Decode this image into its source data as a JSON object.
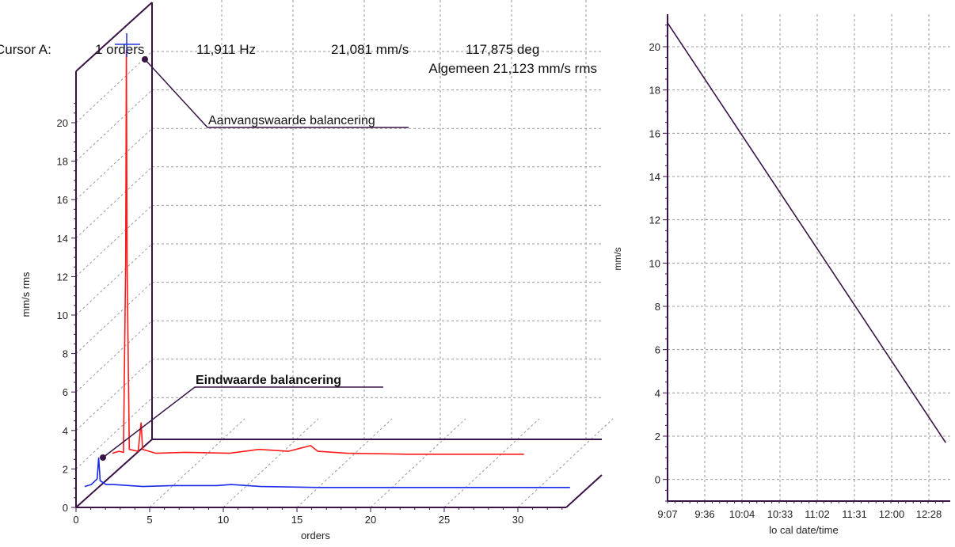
{
  "chart_data": [
    {
      "type": "line",
      "style": "3d-waterfall",
      "cursor": {
        "label": "Cursor A:",
        "order": "1 orders",
        "frequency": "11,911 Hz",
        "amplitude": "21,081 mm/s",
        "phase": "117,875 deg",
        "overall": "Algemeen 21,123 mm/s rms"
      },
      "xlabel": "orders",
      "ylabel": "mm/s rms",
      "xlim": [
        0,
        33
      ],
      "ylim": [
        0,
        21
      ],
      "x_ticks": [
        "0",
        "5",
        "10",
        "15",
        "20",
        "25",
        "30"
      ],
      "y_ticks": [
        "0",
        "2",
        "4",
        "6",
        "8",
        "10",
        "12",
        "14",
        "16",
        "18",
        "20"
      ],
      "annotations": [
        {
          "text": "Aanvangswaarde balancering",
          "bold": false
        },
        {
          "text": "Eindwaarde balancering",
          "bold": true
        }
      ],
      "series": [
        {
          "color": "#ff1a1a",
          "points": [
            [
              0.05,
              0.1
            ],
            [
              0.5,
              0.2
            ],
            [
              0.8,
              0.15
            ],
            [
              0.95,
              10
            ],
            [
              1.0,
              21.08
            ],
            [
              1.05,
              10
            ],
            [
              1.2,
              0.3
            ],
            [
              1.8,
              0.2
            ],
            [
              2.0,
              1.7
            ],
            [
              2.1,
              0.3
            ],
            [
              3,
              0.1
            ],
            [
              5,
              0.15
            ],
            [
              8,
              0.1
            ],
            [
              10,
              0.3
            ],
            [
              12,
              0.2
            ],
            [
              13.5,
              0.5
            ],
            [
              14,
              0.2
            ],
            [
              16,
              0.1
            ],
            [
              20,
              0.05
            ],
            [
              24,
              0.05
            ],
            [
              28,
              0.05
            ]
          ]
        },
        {
          "color": "#1a2ae6",
          "points": [
            [
              0.05,
              0.1
            ],
            [
              0.5,
              0.2
            ],
            [
              0.9,
              0.5
            ],
            [
              1.0,
              1.6
            ],
            [
              1.1,
              0.4
            ],
            [
              1.5,
              0.2
            ],
            [
              2,
              0.2
            ],
            [
              4,
              0.1
            ],
            [
              6,
              0.15
            ],
            [
              9,
              0.15
            ],
            [
              10,
              0.2
            ],
            [
              12,
              0.1
            ],
            [
              16,
              0.05
            ],
            [
              20,
              0.05
            ],
            [
              26,
              0.05
            ],
            [
              33,
              0.05
            ]
          ]
        }
      ]
    },
    {
      "type": "line",
      "xlabel": "lo cal date/time",
      "ylabel": "mm/s",
      "ylim": [
        -1,
        21.5
      ],
      "x_ticks": [
        "9:07",
        "9:36",
        "10:04",
        "10:33",
        "11:02",
        "11:31",
        "12:00",
        "12:28"
      ],
      "y_ticks": [
        "0",
        "2",
        "4",
        "6",
        "8",
        "10",
        "12",
        "14",
        "16",
        "18",
        "20"
      ],
      "series": [
        {
          "color": "#3a1446",
          "points": [
            [
              "9:07",
              21.1
            ],
            [
              "12:41",
              1.7
            ]
          ]
        }
      ]
    }
  ]
}
